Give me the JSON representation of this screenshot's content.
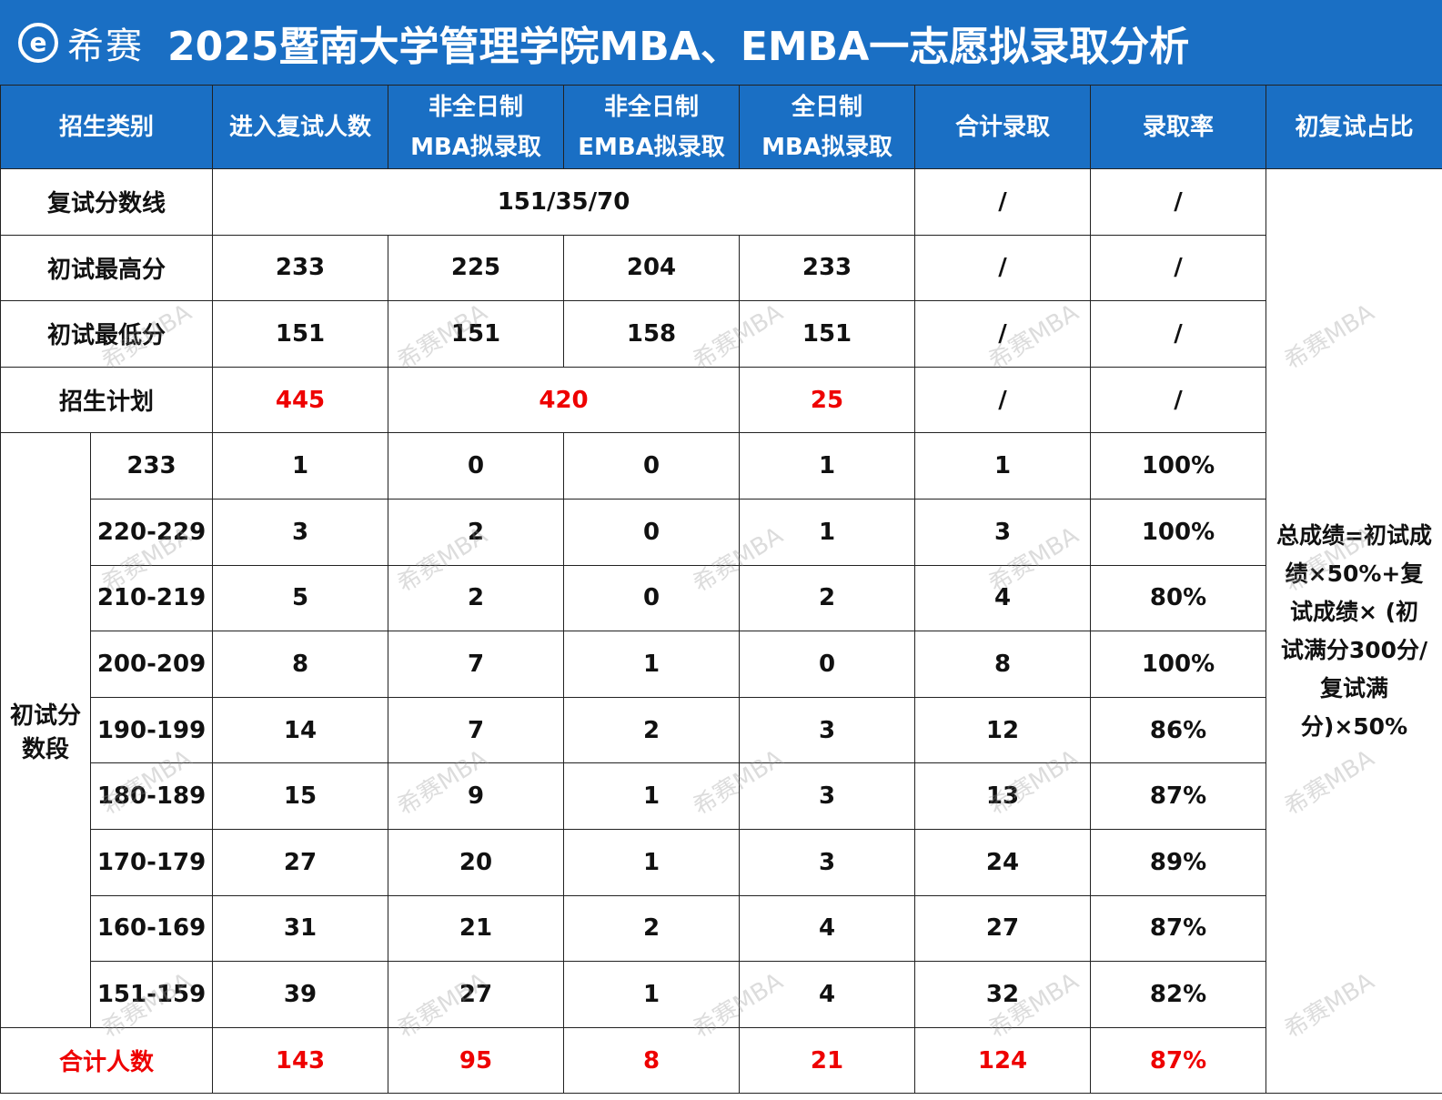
{
  "header": {
    "logo_mark": "e",
    "logo_text": "希赛",
    "title": "2025暨南大学管理学院MBA、EMBA一志愿拟录取分析"
  },
  "columns": {
    "category": "招生类别",
    "retest_count": "进入复试人数",
    "pt_mba_line1": "非全日制",
    "pt_mba_line2": "MBA拟录取",
    "pt_emba_line1": "非全日制",
    "pt_emba_line2": "EMBA拟录取",
    "ft_mba_line1": "全日制",
    "ft_mba_line2": "MBA拟录取",
    "total_admit": "合计录取",
    "admit_rate": "录取率",
    "ratio": "初复试占比"
  },
  "rows": {
    "cutoff": {
      "label": "复试分数线",
      "value": "151/35/70",
      "total": "/",
      "rate": "/"
    },
    "max": {
      "label": "初试最高分",
      "retest": "233",
      "pt_mba": "225",
      "pt_emba": "204",
      "ft_mba": "233",
      "total": "/",
      "rate": "/"
    },
    "min": {
      "label": "初试最低分",
      "retest": "151",
      "pt_mba": "151",
      "pt_emba": "158",
      "ft_mba": "151",
      "total": "/",
      "rate": "/"
    },
    "plan": {
      "label": "招生计划",
      "retest": "445",
      "part_time": "420",
      "ft_mba": "25",
      "total": "/",
      "rate": "/"
    }
  },
  "band_group_label_line1": "初试分",
  "band_group_label_line2": "数段",
  "bands": [
    {
      "range": "233",
      "retest": "1",
      "pt_mba": "0",
      "pt_emba": "0",
      "ft_mba": "1",
      "total": "1",
      "rate": "100%"
    },
    {
      "range": "220-229",
      "retest": "3",
      "pt_mba": "2",
      "pt_emba": "0",
      "ft_mba": "1",
      "total": "3",
      "rate": "100%"
    },
    {
      "range": "210-219",
      "retest": "5",
      "pt_mba": "2",
      "pt_emba": "0",
      "ft_mba": "2",
      "total": "4",
      "rate": "80%"
    },
    {
      "range": "200-209",
      "retest": "8",
      "pt_mba": "7",
      "pt_emba": "1",
      "ft_mba": "0",
      "total": "8",
      "rate": "100%"
    },
    {
      "range": "190-199",
      "retest": "14",
      "pt_mba": "7",
      "pt_emba": "2",
      "ft_mba": "3",
      "total": "12",
      "rate": "86%"
    },
    {
      "range": "180-189",
      "retest": "15",
      "pt_mba": "9",
      "pt_emba": "1",
      "ft_mba": "3",
      "total": "13",
      "rate": "87%"
    },
    {
      "range": "170-179",
      "retest": "27",
      "pt_mba": "20",
      "pt_emba": "1",
      "ft_mba": "3",
      "total": "24",
      "rate": "89%"
    },
    {
      "range": "160-169",
      "retest": "31",
      "pt_mba": "21",
      "pt_emba": "2",
      "ft_mba": "4",
      "total": "27",
      "rate": "87%"
    },
    {
      "range": "151-159",
      "retest": "39",
      "pt_mba": "27",
      "pt_emba": "1",
      "ft_mba": "4",
      "total": "32",
      "rate": "82%"
    }
  ],
  "totals": {
    "label": "合计人数",
    "retest": "143",
    "pt_mba": "95",
    "pt_emba": "8",
    "ft_mba": "21",
    "total": "124",
    "rate": "87%"
  },
  "formula": {
    "line1": "总成绩=初试成",
    "line2": "绩×50%+复",
    "line3": "试成绩× (初",
    "line4": "试满分300分/",
    "line5": "复试满",
    "line6": "分)×50%"
  },
  "watermark": "希赛MBA",
  "colors": {
    "header_blue": "#1a6fc4",
    "highlight_red": "#ee0000"
  }
}
